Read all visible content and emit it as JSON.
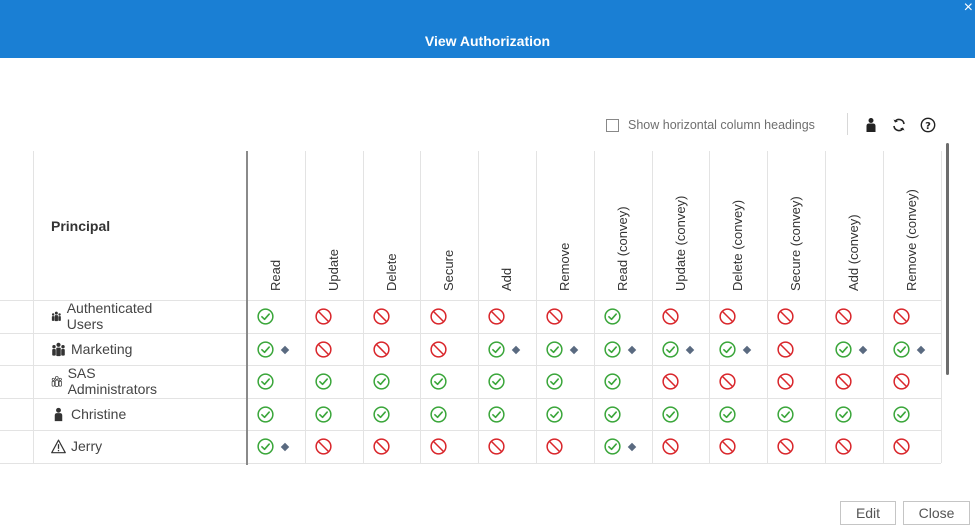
{
  "dialog": {
    "title": "View Authorization"
  },
  "toolbar": {
    "checkbox_label": "Show horizontal column headings",
    "checked": false
  },
  "table": {
    "principal_header": "Principal",
    "columns": [
      "Read",
      "Update",
      "Delete",
      "Secure",
      "Add",
      "Remove",
      "Read (convey)",
      "Update (convey)",
      "Delete (convey)",
      "Secure (convey)",
      "Add (convey)",
      "Remove (convey)"
    ],
    "rows": [
      {
        "name": "Authenticated Users",
        "icon": "group-icon",
        "perms": [
          "grant",
          "deny",
          "deny",
          "deny",
          "deny",
          "deny",
          "grant",
          "deny",
          "deny",
          "deny",
          "deny",
          "deny"
        ],
        "conditional": [
          false,
          false,
          false,
          false,
          false,
          false,
          false,
          false,
          false,
          false,
          false,
          false
        ]
      },
      {
        "name": "Marketing",
        "icon": "group-icon",
        "perms": [
          "grant",
          "deny",
          "deny",
          "deny",
          "grant",
          "grant",
          "grant",
          "grant",
          "grant",
          "deny",
          "grant",
          "grant"
        ],
        "conditional": [
          true,
          false,
          false,
          false,
          true,
          true,
          true,
          true,
          true,
          false,
          true,
          true
        ]
      },
      {
        "name": "SAS Administrators",
        "icon": "custom-group-icon",
        "perms": [
          "grant",
          "grant",
          "grant",
          "grant",
          "grant",
          "grant",
          "grant",
          "deny",
          "deny",
          "deny",
          "deny",
          "deny"
        ],
        "conditional": [
          false,
          false,
          false,
          false,
          false,
          false,
          false,
          false,
          false,
          false,
          false,
          false
        ]
      },
      {
        "name": "Christine",
        "icon": "user-icon",
        "perms": [
          "grant",
          "grant",
          "grant",
          "grant",
          "grant",
          "grant",
          "grant",
          "grant",
          "grant",
          "grant",
          "grant",
          "grant"
        ],
        "conditional": [
          false,
          false,
          false,
          false,
          false,
          false,
          false,
          false,
          false,
          false,
          false,
          false
        ]
      },
      {
        "name": "Jerry",
        "icon": "warning-icon",
        "perms": [
          "grant",
          "deny",
          "deny",
          "deny",
          "deny",
          "deny",
          "grant",
          "deny",
          "deny",
          "deny",
          "deny",
          "deny"
        ],
        "conditional": [
          true,
          false,
          false,
          false,
          false,
          false,
          true,
          false,
          false,
          false,
          false,
          false
        ]
      }
    ]
  },
  "buttons": {
    "edit": "Edit",
    "close": "Close"
  },
  "colors": {
    "header": "#1a7fd4",
    "grant": "#3aa63a",
    "deny": "#d9262b",
    "diamond": "#5a6a80"
  }
}
